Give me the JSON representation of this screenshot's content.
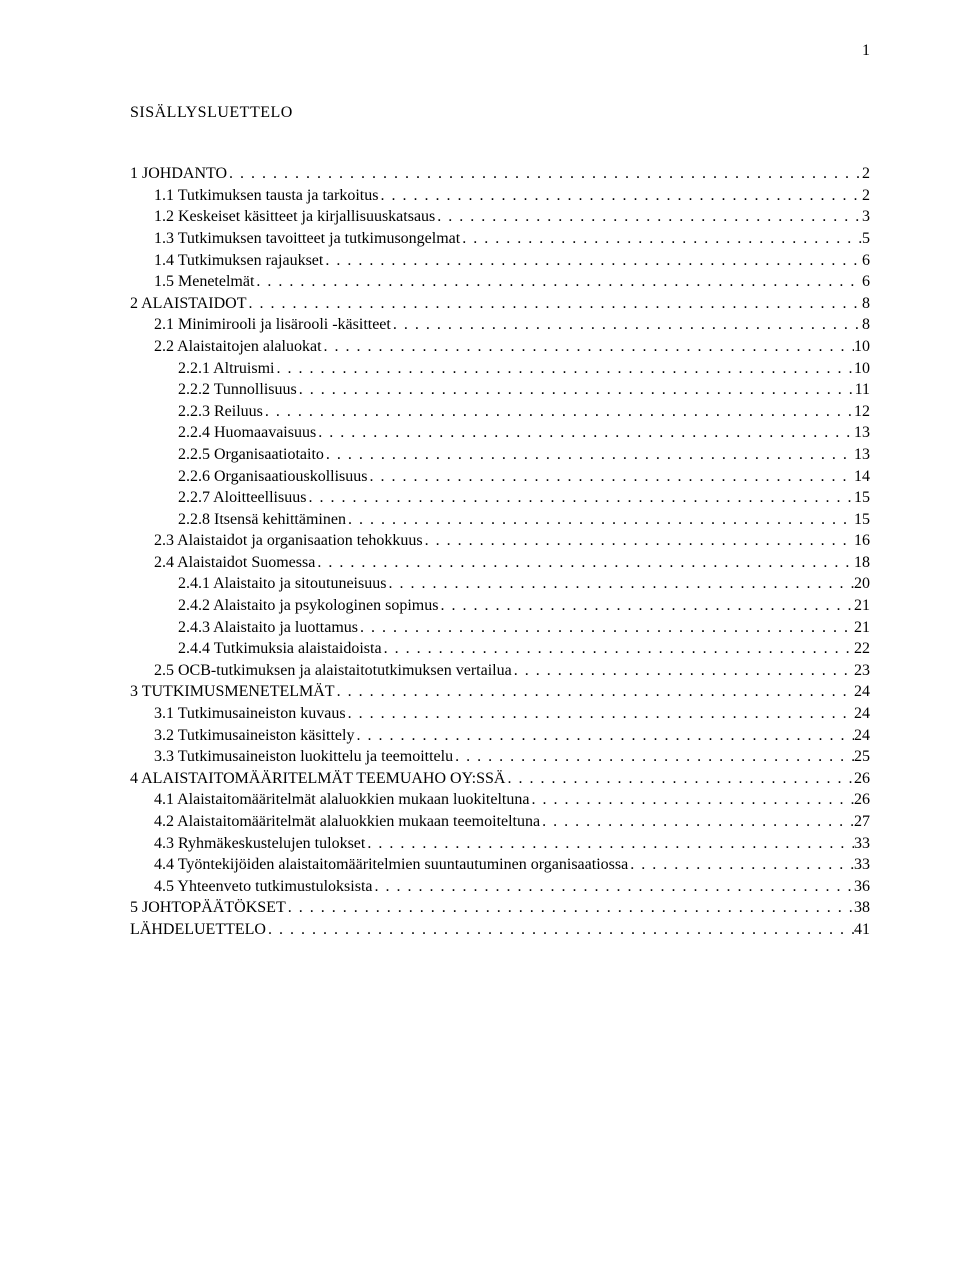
{
  "page_number": "1",
  "toc_title": "SISÄLLYSLUETTELO",
  "entries": [
    {
      "label": "1 JOHDANTO",
      "page": "2",
      "indent": 0
    },
    {
      "label": "1.1 Tutkimuksen tausta ja tarkoitus",
      "page": "2",
      "indent": 1
    },
    {
      "label": "1.2 Keskeiset käsitteet ja kirjallisuuskatsaus",
      "page": "3",
      "indent": 1
    },
    {
      "label": "1.3 Tutkimuksen tavoitteet ja tutkimusongelmat",
      "page": "5",
      "indent": 1
    },
    {
      "label": "1.4 Tutkimuksen rajaukset",
      "page": "6",
      "indent": 1
    },
    {
      "label": "1.5 Menetelmät",
      "page": "6",
      "indent": 1
    },
    {
      "label": "2 ALAISTAIDOT",
      "page": "8",
      "indent": 0
    },
    {
      "label": "2.1 Minimirooli ja lisärooli -käsitteet",
      "page": "8",
      "indent": 1
    },
    {
      "label": "2.2 Alaistaitojen alaluokat",
      "page": "10",
      "indent": 1
    },
    {
      "label": "2.2.1 Altruismi",
      "page": "10",
      "indent": 2
    },
    {
      "label": "2.2.2 Tunnollisuus",
      "page": "11",
      "indent": 2
    },
    {
      "label": "2.2.3 Reiluus",
      "page": "12",
      "indent": 2
    },
    {
      "label": "2.2.4 Huomaavaisuus",
      "page": "13",
      "indent": 2
    },
    {
      "label": "2.2.5 Organisaatiotaito",
      "page": "13",
      "indent": 2
    },
    {
      "label": "2.2.6 Organisaatiouskollisuus",
      "page": "14",
      "indent": 2
    },
    {
      "label": "2.2.7 Aloitteellisuus",
      "page": "15",
      "indent": 2
    },
    {
      "label": "2.2.8 Itsensä kehittäminen",
      "page": "15",
      "indent": 2
    },
    {
      "label": "2.3 Alaistaidot ja organisaation tehokkuus",
      "page": "16",
      "indent": 1
    },
    {
      "label": "2.4 Alaistaidot Suomessa",
      "page": "18",
      "indent": 1
    },
    {
      "label": "2.4.1 Alaistaito ja sitoutuneisuus",
      "page": "20",
      "indent": 2
    },
    {
      "label": "2.4.2 Alaistaito ja psykologinen sopimus",
      "page": "21",
      "indent": 2
    },
    {
      "label": "2.4.3 Alaistaito ja luottamus",
      "page": "21",
      "indent": 2
    },
    {
      "label": "2.4.4 Tutkimuksia alaistaidoista",
      "page": "22",
      "indent": 2
    },
    {
      "label": "2.5 OCB-tutkimuksen ja alaistaitotutkimuksen vertailua",
      "page": "23",
      "indent": 1
    },
    {
      "label": "3 TUTKIMUSMENETELMÄT",
      "page": "24",
      "indent": 0
    },
    {
      "label": "3.1 Tutkimusaineiston kuvaus",
      "page": "24",
      "indent": 1
    },
    {
      "label": "3.2 Tutkimusaineiston käsittely",
      "page": "24",
      "indent": 1
    },
    {
      "label": "3.3 Tutkimusaineiston luokittelu ja teemoittelu",
      "page": "25",
      "indent": 1
    },
    {
      "label": "4 ALAISTAITOMÄÄRITELMÄT TEEMUAHO OY:SSÄ",
      "page": "26",
      "indent": 0
    },
    {
      "label": "4.1 Alaistaitomääritelmät alaluokkien mukaan luokiteltuna",
      "page": "26",
      "indent": 1
    },
    {
      "label": "4.2 Alaistaitomääritelmät alaluokkien mukaan teemoiteltuna",
      "page": "27",
      "indent": 1
    },
    {
      "label": "4.3 Ryhmäkeskustelujen tulokset",
      "page": "33",
      "indent": 1
    },
    {
      "label": "4.4 Työntekijöiden alaistaitomääritelmien suuntautuminen organisaatiossa",
      "page": "33",
      "indent": 1
    },
    {
      "label": "4.5 Yhteenveto tutkimustuloksista",
      "page": "36",
      "indent": 1
    },
    {
      "label": "5 JOHTOPÄÄTÖKSET",
      "page": "38",
      "indent": 0
    },
    {
      "label": "LÄHDELUETTELO",
      "page": "41",
      "indent": 0
    }
  ]
}
